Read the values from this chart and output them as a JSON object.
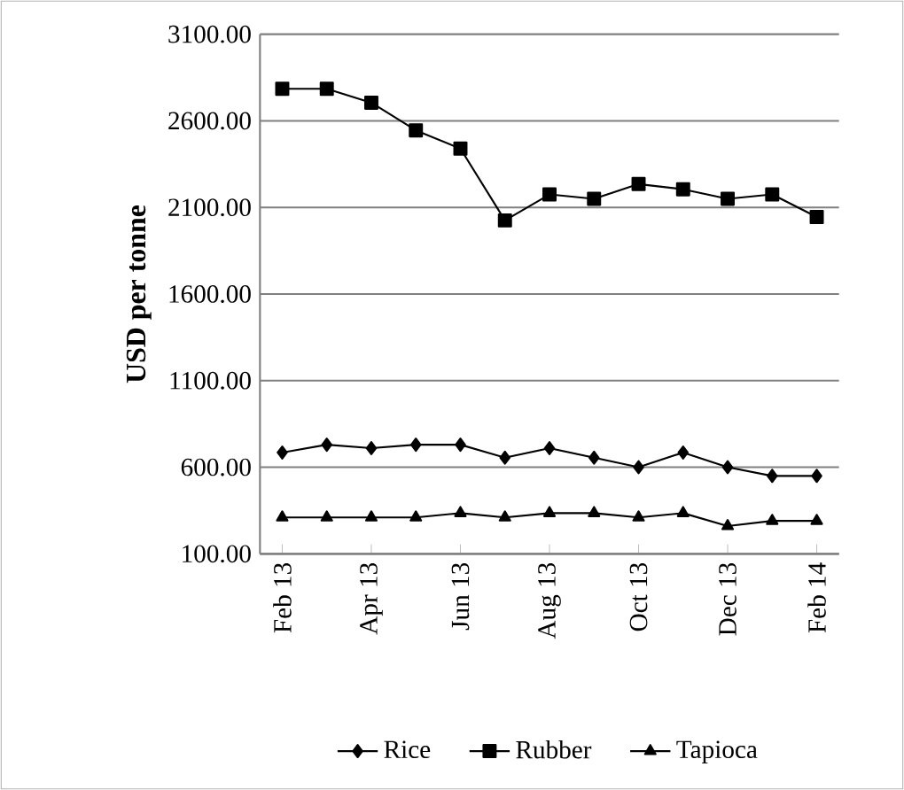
{
  "chart_data": {
    "type": "line",
    "ylabel": "USD per tonne",
    "categories": [
      "Feb 13",
      null,
      "Apr 13",
      null,
      "Jun 13",
      null,
      "Aug 13",
      null,
      "Oct 13",
      null,
      "Dec 13",
      null,
      "Feb 14"
    ],
    "series": [
      {
        "name": "Rice",
        "color": "#000000",
        "marker": "diamond",
        "values": [
          685,
          730,
          710,
          730,
          730,
          655,
          710,
          655,
          600,
          685,
          600,
          550,
          550
        ]
      },
      {
        "name": "Rubber",
        "color": "#000000",
        "marker": "square",
        "values": [
          2785,
          2785,
          2705,
          2545,
          2440,
          2025,
          2175,
          2150,
          2235,
          2205,
          2150,
          2175,
          2045
        ]
      },
      {
        "name": "Tapioca",
        "color": "#000000",
        "marker": "triangle",
        "values": [
          310,
          310,
          310,
          310,
          335,
          310,
          335,
          335,
          310,
          335,
          260,
          290,
          290
        ]
      }
    ],
    "ylim": [
      100,
      3100
    ],
    "yticks": [
      {
        "value": 100,
        "label": "100.00"
      },
      {
        "value": 600,
        "label": "600.00"
      },
      {
        "value": 1100,
        "label": "1100.00"
      },
      {
        "value": 1600,
        "label": "1600.00"
      },
      {
        "value": 2100,
        "label": "2100.00"
      },
      {
        "value": 2600,
        "label": "2600.00"
      },
      {
        "value": 3100,
        "label": "3100.00"
      }
    ],
    "grid": "y",
    "legend": "bottom",
    "line_style": "solid"
  }
}
